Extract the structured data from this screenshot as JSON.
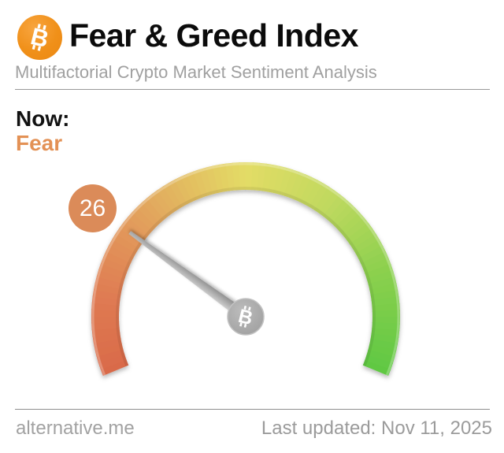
{
  "header": {
    "title": "Fear & Greed Index",
    "subtitle": "Multifactorial Crypto Market Sentiment Analysis",
    "logo_icon": "bitcoin-icon",
    "logo_color": "#f09019"
  },
  "status": {
    "label": "Now:",
    "value": "Fear",
    "value_color": "#e39155"
  },
  "footer": {
    "source": "alternative.me",
    "last_updated": "Last updated: Nov 11, 2025"
  },
  "chart_data": {
    "type": "gauge",
    "title": "Fear & Greed Index",
    "value": 26,
    "min": 0,
    "max": 100,
    "classification": "Fear",
    "start_angle_deg": 202.5,
    "end_angle_deg": -22.5,
    "color_stops": [
      {
        "t": 0.0,
        "color": "#d96a4a"
      },
      {
        "t": 0.13,
        "color": "#df7a52"
      },
      {
        "t": 0.27,
        "color": "#e29a5b"
      },
      {
        "t": 0.5,
        "color": "#e3dc66"
      },
      {
        "t": 0.66,
        "color": "#c0d95f"
      },
      {
        "t": 0.82,
        "color": "#8bd04e"
      },
      {
        "t": 1.0,
        "color": "#5fc843"
      }
    ],
    "badge_color": "#db8b59",
    "needle_color": "#a5a5a5",
    "hub_color": "#a8a8a8"
  }
}
